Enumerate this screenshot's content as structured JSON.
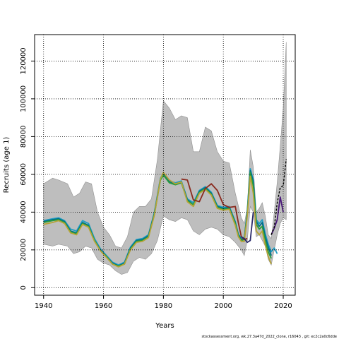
{
  "chart_data": {
    "type": "line",
    "title": "",
    "xlabel": "Years",
    "ylabel": "Recruits (age 1)",
    "xlim": [
      1937,
      2024
    ],
    "ylim": [
      -4000,
      134000
    ],
    "x_ticks": [
      1940,
      1960,
      1980,
      2000,
      2020
    ],
    "y_ticks": [
      0,
      20000,
      40000,
      60000,
      80000,
      100000,
      120000
    ],
    "grid": true,
    "legend": "none",
    "band": {
      "color": "#bebebe",
      "x": [
        1940,
        1943,
        1945,
        1948,
        1950,
        1952,
        1954,
        1956,
        1958,
        1960,
        1962,
        1964,
        1966,
        1968,
        1970,
        1972,
        1974,
        1976,
        1978,
        1980,
        1982,
        1984,
        1986,
        1988,
        1990,
        1992,
        1994,
        1996,
        1998,
        2000,
        2002,
        2004,
        2006,
        2007,
        2008,
        2009,
        2010,
        2011,
        2012,
        2013,
        2014,
        2015,
        2016,
        2017,
        2018,
        2019,
        2020,
        2021
      ],
      "upper": [
        55000,
        58000,
        57000,
        55000,
        48000,
        50000,
        56000,
        55000,
        40000,
        32000,
        28000,
        22000,
        21000,
        27000,
        40000,
        43000,
        43000,
        47000,
        68000,
        99000,
        95000,
        89000,
        91000,
        90000,
        72000,
        72000,
        85000,
        83000,
        72000,
        67000,
        66000,
        50000,
        37000,
        34000,
        42000,
        73000,
        64000,
        40000,
        42000,
        45000,
        38000,
        28000,
        26000,
        40000,
        56000,
        75000,
        95000,
        130000
      ],
      "lower": [
        23000,
        22000,
        23000,
        22000,
        18000,
        19000,
        22000,
        21000,
        15000,
        13000,
        12000,
        9000,
        7000,
        8000,
        14000,
        16000,
        15000,
        18000,
        25000,
        38000,
        36000,
        35000,
        37000,
        36000,
        30000,
        28000,
        31000,
        32000,
        31000,
        28000,
        27000,
        24000,
        20000,
        17000,
        25000,
        43000,
        40000,
        27000,
        28000,
        25000,
        22000,
        15000,
        12000,
        20000,
        28000,
        34000,
        37000,
        36000
      ]
    },
    "series": [
      {
        "color": "#1f9ec4",
        "x": [
          1940,
          1943,
          1945,
          1947,
          1949,
          1951,
          1953,
          1955,
          1957,
          1959,
          1961,
          1963,
          1965,
          1967,
          1969,
          1971,
          1973,
          1975,
          1977,
          1979,
          1980,
          1982,
          1984,
          1986,
          1988,
          1990,
          1992,
          1994,
          1996,
          1998,
          2000,
          2002,
          2004,
          2005,
          2006,
          2007,
          2008,
          2009,
          2010,
          2011,
          2012,
          2013,
          2014,
          2015,
          2016,
          2017,
          2018
        ],
        "y": [
          35500,
          36500,
          37000,
          35500,
          31000,
          30000,
          35500,
          34000,
          26000,
          20500,
          17000,
          13500,
          12000,
          13500,
          21500,
          25500,
          26000,
          28000,
          40000,
          58000,
          60500,
          56500,
          55500,
          56500,
          47000,
          45000,
          51500,
          53500,
          50500,
          43500,
          42500,
          43000,
          35000,
          28500,
          26000,
          25500,
          41000,
          63000,
          57000,
          36000,
          34000,
          36000,
          28500,
          23000,
          19000,
          21000,
          18000
        ]
      },
      {
        "color": "#006e8c",
        "x": [
          1940,
          1943,
          1945,
          1947,
          1949,
          1951,
          1953,
          1955,
          1957,
          1959,
          1961,
          1963,
          1965,
          1967,
          1969,
          1971,
          1973,
          1975,
          1977,
          1979,
          1980,
          1982,
          1984,
          1986,
          1988,
          1990,
          1992,
          1994,
          1996,
          1998,
          2000,
          2002,
          2004,
          2005,
          2006,
          2007,
          2008,
          2009,
          2010,
          2011,
          2012,
          2013,
          2014,
          2015,
          2016
        ],
        "y": [
          35000,
          36000,
          36500,
          35000,
          30000,
          29000,
          34500,
          33000,
          25000,
          20000,
          16500,
          13000,
          11500,
          13000,
          21000,
          25000,
          25500,
          27500,
          39500,
          57500,
          60000,
          56000,
          55000,
          56000,
          46500,
          44000,
          51000,
          53000,
          50000,
          43000,
          42000,
          42500,
          34500,
          28000,
          25500,
          26000,
          40000,
          62000,
          56000,
          35000,
          32500,
          34500,
          27000,
          21500,
          17000
        ]
      },
      {
        "color": "#2a9d3a",
        "x": [
          1940,
          1943,
          1945,
          1947,
          1949,
          1951,
          1953,
          1955,
          1957,
          1959,
          1961,
          1963,
          1965,
          1967,
          1969,
          1971,
          1973,
          1975,
          1977,
          1979,
          1980,
          1982,
          1984,
          1986,
          1988,
          1990,
          1992,
          1994,
          1996,
          1998,
          2000,
          2002,
          2004,
          2005,
          2006,
          2007,
          2008,
          2009,
          2010,
          2011,
          2012,
          2013,
          2014,
          2015,
          2016
        ],
        "y": [
          34500,
          35500,
          36000,
          34500,
          29500,
          28500,
          34000,
          32500,
          25000,
          19500,
          16500,
          12500,
          11500,
          12500,
          20500,
          24500,
          25000,
          27000,
          39000,
          57000,
          59500,
          55500,
          54500,
          55500,
          46000,
          44000,
          50500,
          52500,
          49500,
          42500,
          41500,
          42000,
          34000,
          27500,
          25000,
          25500,
          39000,
          61000,
          54000,
          33500,
          31000,
          32500,
          25000,
          19000,
          15500
        ]
      },
      {
        "color": "#b5a437",
        "x": [
          1940,
          1943,
          1945,
          1947,
          1949,
          1951,
          1953,
          1955,
          1957,
          1959,
          1961,
          1963,
          1965,
          1967,
          1969,
          1971,
          1973,
          1975,
          1977,
          1979,
          1980,
          1982,
          1984,
          1986,
          1988,
          1990,
          1992,
          1994,
          1996,
          1998,
          2000,
          2002,
          2004,
          2005,
          2006,
          2007,
          2008,
          2009,
          2010,
          2011,
          2012,
          2013,
          2014,
          2015,
          2016
        ],
        "y": [
          33500,
          34500,
          35500,
          34000,
          29000,
          28000,
          33500,
          32000,
          24500,
          19500,
          16000,
          12500,
          11000,
          12500,
          20000,
          24000,
          24500,
          26500,
          38500,
          57500,
          61000,
          57000,
          55000,
          56000,
          45500,
          43000,
          50000,
          52000,
          49000,
          42000,
          41000,
          41500,
          33000,
          27000,
          24500,
          24500,
          38000,
          59000,
          50000,
          30000,
          28000,
          30000,
          22500,
          16500,
          12500
        ]
      },
      {
        "color": "#8a2a1e",
        "x": [
          1986,
          1988,
          1990,
          1992,
          1994,
          1996,
          1998,
          2000,
          2002,
          2004,
          2005,
          2006,
          2007,
          2008
        ],
        "y": [
          57500,
          57000,
          46500,
          45500,
          52500,
          55000,
          51500,
          44000,
          42500,
          43000,
          34500,
          27000,
          25500,
          26000
        ]
      },
      {
        "color": "#2a2a6a",
        "x": [
          2006,
          2007,
          2008,
          2009,
          2010
        ],
        "y": [
          27000,
          26000,
          24000,
          25000,
          40000
        ]
      },
      {
        "color": "#4a1a7a",
        "x": [
          2016,
          2017,
          2018,
          2019,
          2020
        ],
        "y": [
          28000,
          31500,
          36000,
          48000,
          40000
        ]
      },
      {
        "color": "#000000",
        "dash": true,
        "x": [
          2016,
          2017,
          2018,
          2019,
          2020,
          2021
        ],
        "y": [
          28000,
          32000,
          45000,
          53000,
          54000,
          68000
        ]
      }
    ]
  },
  "footer": "stockassessment.org, wk.27.3a47d_2022_clone, r16043 , git: ec2c2a0c6dde"
}
